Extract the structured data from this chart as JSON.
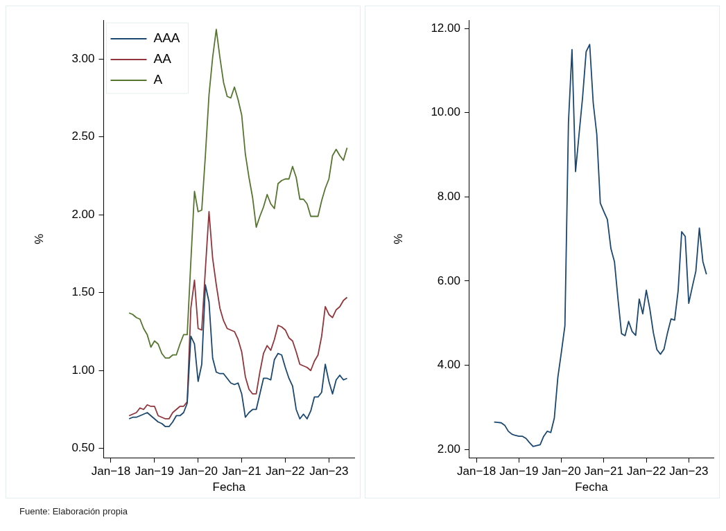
{
  "chart_data": [
    {
      "type": "line",
      "xlabel": "Fecha",
      "ylabel": "%",
      "legend": "top left",
      "xlim": [
        "2017-11",
        "2023-08"
      ],
      "ylim": [
        0.44,
        3.25
      ],
      "xticks": [
        {
          "value": "2018-01",
          "label": "Jan−18"
        },
        {
          "value": "2019-01",
          "label": "Jan−19"
        },
        {
          "value": "2020-01",
          "label": "Jan−20"
        },
        {
          "value": "2021-01",
          "label": "Jan−21"
        },
        {
          "value": "2022-01",
          "label": "Jan−22"
        },
        {
          "value": "2023-01",
          "label": "Jan−23"
        }
      ],
      "yticks": [
        {
          "value": 0.5,
          "label": "0.50"
        },
        {
          "value": 1,
          "label": "1.00"
        },
        {
          "value": 1.5,
          "label": "1.50"
        },
        {
          "value": 2,
          "label": "2.00"
        },
        {
          "value": 2.5,
          "label": "2.50"
        },
        {
          "value": 3,
          "label": "3.00"
        }
      ],
      "x": [
        "2018-06",
        "2018-07",
        "2018-08",
        "2018-09",
        "2018-10",
        "2018-11",
        "2018-12",
        "2019-01",
        "2019-02",
        "2019-03",
        "2019-04",
        "2019-05",
        "2019-06",
        "2019-07",
        "2019-08",
        "2019-09",
        "2019-10",
        "2019-11",
        "2019-12",
        "2020-01",
        "2020-02",
        "2020-03",
        "2020-04",
        "2020-05",
        "2020-06",
        "2020-07",
        "2020-08",
        "2020-09",
        "2020-10",
        "2020-11",
        "2020-12",
        "2021-01",
        "2021-02",
        "2021-03",
        "2021-04",
        "2021-05",
        "2021-06",
        "2021-07",
        "2021-08",
        "2021-09",
        "2021-10",
        "2021-11",
        "2021-12",
        "2022-01",
        "2022-02",
        "2022-03",
        "2022-04",
        "2022-05",
        "2022-06",
        "2022-07",
        "2022-08",
        "2022-09",
        "2022-10",
        "2022-11",
        "2022-12",
        "2023-01",
        "2023-02",
        "2023-03",
        "2023-04",
        "2023-05",
        "2023-06"
      ],
      "series": [
        {
          "name": "AAA",
          "color": "#1a476f",
          "values": [
            0.69,
            0.7,
            0.7,
            0.71,
            0.72,
            0.73,
            0.71,
            0.69,
            0.67,
            0.66,
            0.64,
            0.64,
            0.67,
            0.71,
            0.71,
            0.73,
            0.79,
            1.22,
            1.17,
            0.93,
            1.04,
            1.55,
            1.44,
            1.08,
            0.99,
            0.98,
            0.98,
            0.95,
            0.92,
            0.91,
            0.92,
            0.85,
            0.7,
            0.73,
            0.75,
            0.75,
            0.85,
            0.95,
            0.95,
            0.94,
            1.07,
            1.11,
            1.1,
            1.02,
            0.95,
            0.9,
            0.75,
            0.69,
            0.72,
            0.69,
            0.74,
            0.83,
            0.83,
            0.86,
            1.04,
            0.93,
            0.85,
            0.94,
            0.97,
            0.94,
            0.95
          ]
        },
        {
          "name": "AA",
          "color": "#90353b",
          "values": [
            0.71,
            0.72,
            0.73,
            0.76,
            0.75,
            0.78,
            0.77,
            0.77,
            0.71,
            0.7,
            0.69,
            0.69,
            0.73,
            0.75,
            0.77,
            0.77,
            0.8,
            1.4,
            1.58,
            1.27,
            1.26,
            1.65,
            2.02,
            1.72,
            1.55,
            1.4,
            1.32,
            1.27,
            1.26,
            1.25,
            1.2,
            1.12,
            0.96,
            0.88,
            0.85,
            0.85,
            0.99,
            1.11,
            1.16,
            1.13,
            1.2,
            1.29,
            1.28,
            1.26,
            1.21,
            1.19,
            1.12,
            1.04,
            1.03,
            1.02,
            1.0,
            1.06,
            1.1,
            1.22,
            1.41,
            1.36,
            1.34,
            1.39,
            1.41,
            1.45,
            1.47
          ]
        },
        {
          "name": "A",
          "color": "#55752f",
          "values": [
            1.37,
            1.36,
            1.34,
            1.33,
            1.27,
            1.23,
            1.15,
            1.19,
            1.17,
            1.11,
            1.08,
            1.08,
            1.1,
            1.1,
            1.17,
            1.23,
            1.23,
            1.7,
            2.15,
            2.02,
            2.03,
            2.38,
            2.77,
            3.01,
            3.19,
            3.01,
            2.85,
            2.76,
            2.75,
            2.82,
            2.74,
            2.64,
            2.39,
            2.24,
            2.11,
            1.92,
            1.99,
            2.05,
            2.13,
            2.07,
            2.04,
            2.2,
            2.22,
            2.23,
            2.23,
            2.31,
            2.24,
            2.1,
            2.1,
            2.07,
            1.99,
            1.99,
            1.99,
            2.09,
            2.17,
            2.23,
            2.38,
            2.42,
            2.38,
            2.35,
            2.43
          ]
        }
      ],
      "annotations": [
        "Fuente: Elaboración propia"
      ]
    },
    {
      "type": "line",
      "xlabel": "Fecha",
      "ylabel": "%",
      "xlim": [
        "2017-11",
        "2023-08"
      ],
      "ylim": [
        1.8,
        12.2
      ],
      "xticks": [
        {
          "value": "2018-01",
          "label": "Jan−18"
        },
        {
          "value": "2019-01",
          "label": "Jan−19"
        },
        {
          "value": "2020-01",
          "label": "Jan−20"
        },
        {
          "value": "2021-01",
          "label": "Jan−21"
        },
        {
          "value": "2022-01",
          "label": "Jan−22"
        },
        {
          "value": "2023-01",
          "label": "Jan−23"
        }
      ],
      "yticks": [
        {
          "value": 2,
          "label": "2.00"
        },
        {
          "value": 4,
          "label": "4.00"
        },
        {
          "value": 6,
          "label": "6.00"
        },
        {
          "value": 8,
          "label": "8.00"
        },
        {
          "value": 10,
          "label": "10.00"
        },
        {
          "value": 12,
          "label": "12.00"
        }
      ],
      "x": [
        "2018-06",
        "2018-07",
        "2018-08",
        "2018-09",
        "2018-10",
        "2018-11",
        "2018-12",
        "2019-01",
        "2019-02",
        "2019-03",
        "2019-04",
        "2019-05",
        "2019-06",
        "2019-07",
        "2019-08",
        "2019-09",
        "2019-10",
        "2019-11",
        "2019-12",
        "2020-01",
        "2020-02",
        "2020-03",
        "2020-04",
        "2020-05",
        "2020-06",
        "2020-07",
        "2020-08",
        "2020-09",
        "2020-10",
        "2020-11",
        "2020-12",
        "2021-01",
        "2021-02",
        "2021-03",
        "2021-04",
        "2021-05",
        "2021-06",
        "2021-07",
        "2021-08",
        "2021-09",
        "2021-10",
        "2021-11",
        "2021-12",
        "2022-01",
        "2022-02",
        "2022-03",
        "2022-04",
        "2022-05",
        "2022-06",
        "2022-07",
        "2022-08",
        "2022-09",
        "2022-10",
        "2022-11",
        "2022-12",
        "2023-01",
        "2023-02",
        "2023-03",
        "2023-04",
        "2023-05",
        "2023-06"
      ],
      "series": [
        {
          "color": "#1a476f",
          "values": [
            2.65,
            2.64,
            2.63,
            2.57,
            2.43,
            2.36,
            2.33,
            2.31,
            2.31,
            2.26,
            2.16,
            2.07,
            2.09,
            2.11,
            2.31,
            2.43,
            2.4,
            2.74,
            3.71,
            4.31,
            4.94,
            9.77,
            11.5,
            8.6,
            9.49,
            10.37,
            11.45,
            11.62,
            10.23,
            9.49,
            7.85,
            7.65,
            7.46,
            6.77,
            6.46,
            5.57,
            4.75,
            4.7,
            5.04,
            4.8,
            4.71,
            5.57,
            5.22,
            5.78,
            5.34,
            4.77,
            4.37,
            4.26,
            4.38,
            4.77,
            5.1,
            5.07,
            5.77,
            7.17,
            7.06,
            5.47,
            5.86,
            6.23,
            7.26,
            6.46,
            6.16
          ]
        }
      ]
    }
  ]
}
